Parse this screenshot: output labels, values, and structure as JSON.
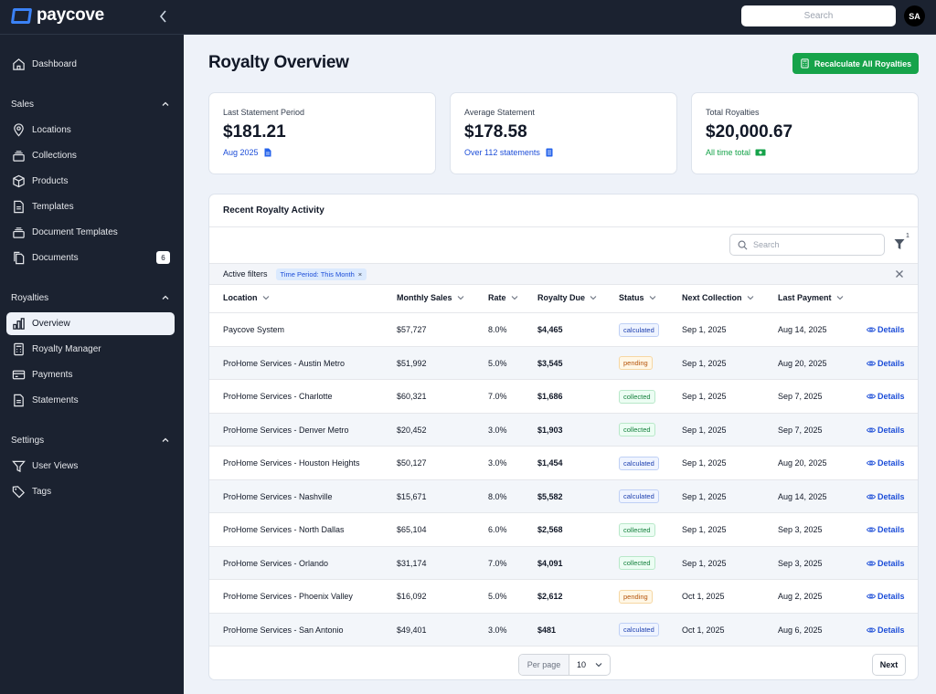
{
  "app": {
    "brand": "paycove"
  },
  "topbar": {
    "search_placeholder": "Search",
    "avatar_initials": "SA"
  },
  "sidebar": {
    "dashboard": "Dashboard",
    "sales": {
      "title": "Sales",
      "items": [
        "Locations",
        "Collections",
        "Products",
        "Templates",
        "Document Templates",
        "Documents"
      ],
      "documents_count": "6"
    },
    "royalties": {
      "title": "Royalties",
      "items": [
        "Overview",
        "Royalty Manager",
        "Payments",
        "Statements"
      ]
    },
    "settings": {
      "title": "Settings",
      "items": [
        "User Views",
        "Tags"
      ]
    }
  },
  "page": {
    "title": "Royalty Overview",
    "recalc_button": "Recalculate All Royalties"
  },
  "cards": [
    {
      "label": "Last Statement Period",
      "value": "$181.21",
      "sub": "Aug 2025",
      "sub_color": "#1d4ed8"
    },
    {
      "label": "Average Statement",
      "value": "$178.58",
      "sub": "Over 112 statements",
      "sub_color": "#1d4ed8"
    },
    {
      "label": "Total Royalties",
      "value": "$20,000.67",
      "sub": "All time total",
      "sub_color": "#16a34a"
    }
  ],
  "activity": {
    "title": "Recent Royalty Activity",
    "search_placeholder": "Search",
    "filter_count": "1",
    "active_filters_label": "Active filters",
    "filter_chip": "Time Period: This Month",
    "columns": [
      "Location",
      "Monthly Sales",
      "Rate",
      "Royalty Due",
      "Status",
      "Next Collection",
      "Last Payment"
    ],
    "details_label": "Details",
    "rows": [
      [
        "Paycove System",
        "$57,727",
        "8.0%",
        "$4,465",
        "calculated",
        "Sep 1, 2025",
        "Aug 14, 2025"
      ],
      [
        "ProHome Services - Austin Metro",
        "$51,992",
        "5.0%",
        "$3,545",
        "pending",
        "Sep 1, 2025",
        "Aug 20, 2025"
      ],
      [
        "ProHome Services - Charlotte",
        "$60,321",
        "7.0%",
        "$1,686",
        "collected",
        "Sep 1, 2025",
        "Sep 7, 2025"
      ],
      [
        "ProHome Services - Denver Metro",
        "$20,452",
        "3.0%",
        "$1,903",
        "collected",
        "Sep 1, 2025",
        "Sep 7, 2025"
      ],
      [
        "ProHome Services - Houston Heights",
        "$50,127",
        "3.0%",
        "$1,454",
        "calculated",
        "Sep 1, 2025",
        "Aug 20, 2025"
      ],
      [
        "ProHome Services - Nashville",
        "$15,671",
        "8.0%",
        "$5,582",
        "calculated",
        "Sep 1, 2025",
        "Aug 14, 2025"
      ],
      [
        "ProHome Services - North Dallas",
        "$65,104",
        "6.0%",
        "$2,568",
        "collected",
        "Sep 1, 2025",
        "Sep 3, 2025"
      ],
      [
        "ProHome Services - Orlando",
        "$31,174",
        "7.0%",
        "$4,091",
        "collected",
        "Sep 1, 2025",
        "Sep 3, 2025"
      ],
      [
        "ProHome Services - Phoenix Valley",
        "$16,092",
        "5.0%",
        "$2,612",
        "pending",
        "Oct 1, 2025",
        "Aug 2, 2025"
      ],
      [
        "ProHome Services - San Antonio",
        "$49,401",
        "3.0%",
        "$481",
        "calculated",
        "Oct 1, 2025",
        "Aug 6, 2025"
      ]
    ],
    "pagination": {
      "per_page_label": "Per page",
      "per_page_value": "10",
      "next_label": "Next"
    }
  },
  "colors": {
    "sidebar_bg": "#1b2230",
    "accent_blue": "#3b82f6",
    "primary_green": "#16a34a",
    "link_blue": "#1d4ed8"
  }
}
